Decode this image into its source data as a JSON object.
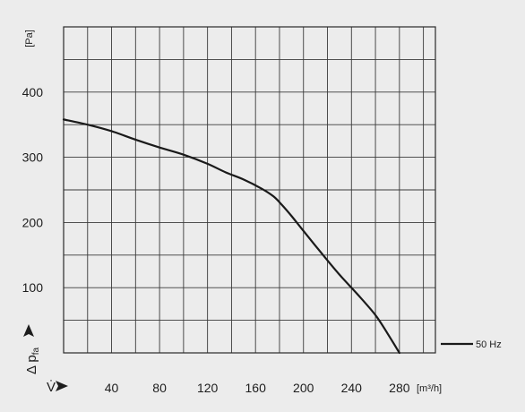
{
  "chart_data": {
    "type": "line",
    "y_unit": "[Pa]",
    "x_unit": "[m³/h]",
    "y_axis_symbol": "Δ p",
    "y_axis_subscript": "fa",
    "x_axis_symbol": "V̇",
    "x_ticks": [
      "40",
      "80",
      "120",
      "160",
      "200",
      "240",
      "280"
    ],
    "y_ticks": [
      "100",
      "200",
      "300",
      "400"
    ],
    "xlim": [
      0,
      310
    ],
    "ylim": [
      0,
      500
    ],
    "grid": true,
    "legend_position": "bottom-right",
    "series": [
      {
        "name": "50 Hz",
        "color": "#1a1a1a",
        "x": [
          0,
          20,
          40,
          60,
          80,
          100,
          120,
          135,
          150,
          165,
          175,
          182,
          190,
          200,
          215,
          230,
          245,
          260,
          270,
          280
        ],
        "y": [
          358,
          350,
          340,
          327,
          315,
          304,
          290,
          277,
          266,
          252,
          240,
          227,
          210,
          187,
          153,
          120,
          90,
          58,
          30,
          0
        ]
      }
    ]
  }
}
